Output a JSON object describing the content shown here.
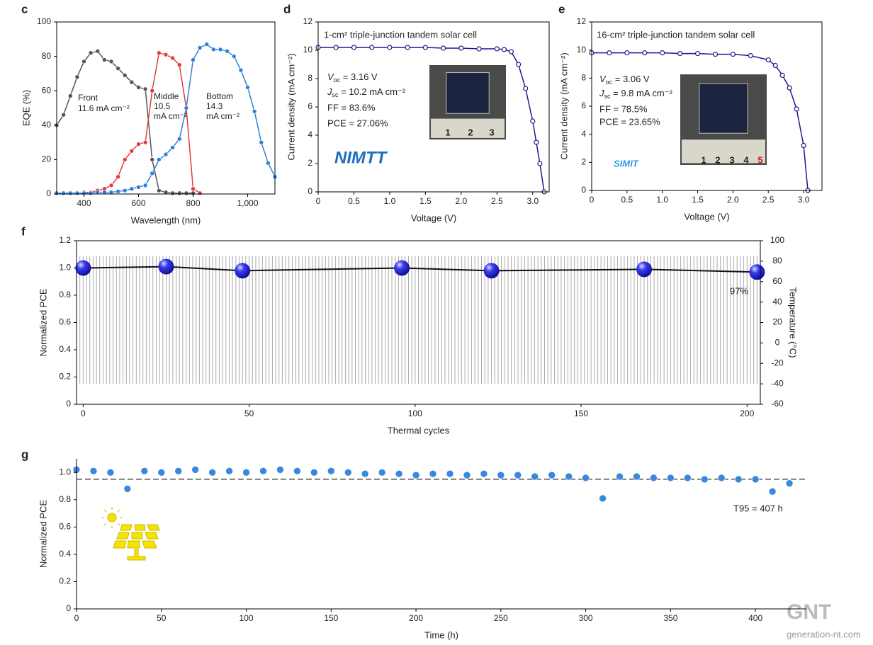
{
  "chart_data": [
    {
      "type": "line",
      "panel": "c",
      "xlabel": "Wavelength (nm)",
      "ylabel": "EQE (%)",
      "xlim": [
        300,
        1100
      ],
      "xticks": [
        400,
        600,
        800,
        {
          "value": 1000,
          "label": "1,000"
        }
      ],
      "ylim": [
        0,
        100
      ],
      "yticks": [
        0,
        20,
        40,
        60,
        80,
        100
      ],
      "notes": [
        "Front",
        "11.6 mA cm⁻²",
        "Middle",
        "10.5",
        "mA cm⁻²",
        "Bottom",
        "14.3",
        "mA cm⁻²"
      ],
      "x": [
        300,
        325,
        350,
        375,
        400,
        425,
        450,
        475,
        500,
        525,
        550,
        575,
        600,
        625,
        650,
        675,
        700,
        725,
        750,
        775,
        800,
        825,
        850,
        875,
        900,
        925,
        950,
        975,
        1000,
        1025,
        1050,
        1075,
        1100
      ],
      "series": [
        {
          "color": "#555555",
          "marker": "dot",
          "values": [
            40,
            46,
            57,
            68,
            77,
            82,
            83,
            78,
            77,
            73,
            69,
            65,
            62,
            61,
            20,
            2,
            1,
            0.5,
            0.5,
            0.5,
            0.5,
            null,
            null,
            null,
            null,
            null,
            null,
            null,
            null,
            null,
            null,
            null,
            null
          ]
        },
        {
          "color": "#e03c3c",
          "marker": "dot",
          "values": [
            null,
            null,
            null,
            null,
            1,
            1,
            2,
            3,
            5,
            10,
            20,
            25,
            29,
            30,
            60,
            82,
            81,
            79,
            75,
            50,
            3,
            0.5,
            null,
            null,
            null,
            null,
            null,
            null,
            null,
            null,
            null,
            null,
            null
          ]
        },
        {
          "color": "#2f7fd8",
          "marker": "dot",
          "values": [
            0.5,
            0.5,
            0.5,
            0.5,
            0.5,
            0.5,
            1,
            1,
            1,
            1.5,
            2,
            3,
            4,
            5,
            12,
            20,
            23,
            27,
            32,
            50,
            78,
            85,
            87,
            84,
            84,
            83,
            80,
            72,
            62,
            48,
            30,
            18,
            10
          ]
        }
      ]
    },
    {
      "type": "line",
      "panel": "d",
      "title": "1-cm² triple-junction tandem solar cell",
      "xlabel": "Voltage (V)",
      "ylabel": "Current density (mA cm⁻²)",
      "xlim": [
        0,
        3.23
      ],
      "xticks": [
        0,
        0.5,
        {
          "value": 1,
          "label": "1.0"
        },
        1.5,
        {
          "value": 2,
          "label": "2.0"
        },
        2.5,
        {
          "value": 3,
          "label": "3.0"
        }
      ],
      "ylim": [
        0,
        12
      ],
      "yticks": [
        0,
        2,
        4,
        6,
        8,
        10,
        12
      ],
      "notes": [
        {
          "main": "V",
          "sub": "oc",
          "rest": " = 3.16 V"
        },
        {
          "main": "J",
          "sub": "sc",
          "rest": " = 10.2 mA cm⁻²"
        },
        "FF = 83.6%",
        "PCE = 27.06%"
      ],
      "logo": "NIMTT",
      "inset_labels": [
        "1",
        "2",
        "3"
      ],
      "x": [
        0,
        0.25,
        0.5,
        0.75,
        1,
        1.25,
        1.5,
        1.75,
        2,
        2.25,
        2.5,
        2.6,
        2.7,
        2.8,
        2.9,
        3.0,
        3.05,
        3.1,
        3.16
      ],
      "series": [
        {
          "color": "#1a1a8c",
          "marker": "ring",
          "values": [
            10.2,
            10.2,
            10.2,
            10.2,
            10.2,
            10.2,
            10.2,
            10.15,
            10.15,
            10.1,
            10.1,
            10.05,
            9.9,
            9.0,
            7.3,
            5.0,
            3.5,
            2.0,
            0
          ]
        }
      ]
    },
    {
      "type": "line",
      "panel": "e",
      "title": "16-cm² triple-junction tandem solar cell",
      "xlabel": "Voltage (V)",
      "ylabel": "Current density (mA cm⁻²)",
      "xlim": [
        0,
        3.26
      ],
      "xticks": [
        0,
        0.5,
        {
          "value": 1,
          "label": "1.0"
        },
        1.5,
        {
          "value": 2,
          "label": "2.0"
        },
        2.5,
        {
          "value": 3,
          "label": "3.0"
        }
      ],
      "ylim": [
        0,
        12
      ],
      "yticks": [
        0,
        2,
        4,
        6,
        8,
        10,
        12
      ],
      "notes": [
        {
          "main": "V",
          "sub": "oc",
          "rest": " = 3.06 V"
        },
        {
          "main": "J",
          "sub": "sc",
          "rest": " = 9.8 mA cm⁻²"
        },
        "FF = 78.5%",
        "PCE = 23.65%"
      ],
      "logo": "SIMIT",
      "inset_labels": [
        "1",
        "2",
        "3",
        "4",
        "5"
      ],
      "x": [
        0,
        0.25,
        0.5,
        0.75,
        1,
        1.25,
        1.5,
        1.75,
        2,
        2.25,
        2.5,
        2.6,
        2.7,
        2.8,
        2.9,
        3.0,
        3.06
      ],
      "series": [
        {
          "color": "#1a1a8c",
          "marker": "ring",
          "values": [
            9.8,
            9.8,
            9.8,
            9.8,
            9.8,
            9.75,
            9.75,
            9.7,
            9.7,
            9.6,
            9.3,
            8.9,
            8.2,
            7.3,
            5.8,
            3.2,
            0
          ]
        }
      ]
    },
    {
      "type": "line",
      "panel": "f",
      "xlabel": "Thermal cycles",
      "ylabel": "Normalized PCE",
      "y2label": "Temperature (°C)",
      "xlim": [
        -2,
        204
      ],
      "xticks": [
        0,
        50,
        100,
        150,
        200
      ],
      "ylim": [
        0,
        1.2
      ],
      "yticks": [
        0,
        0.2,
        0.4,
        0.6,
        0.8,
        {
          "value": 1,
          "label": "1.0"
        },
        1.2
      ],
      "y2lim": [
        -60,
        100
      ],
      "y2ticks": [
        -60,
        -40,
        -20,
        0,
        20,
        40,
        60,
        80,
        100
      ],
      "temperature_range": [
        -40,
        85
      ],
      "temperature_color": "#aaaaaa",
      "notes": [
        "97%"
      ],
      "x": [
        0,
        25,
        48,
        96,
        123,
        169,
        203
      ],
      "series": [
        {
          "color": "#111111",
          "marker": "sphere",
          "values": [
            1.0,
            1.01,
            0.98,
            1.0,
            0.98,
            0.99,
            0.97
          ]
        }
      ]
    },
    {
      "type": "scatter",
      "panel": "g",
      "xlabel": "Time (h)",
      "ylabel": "Normalized PCE",
      "xlim": [
        0,
        430
      ],
      "xticks": [
        0,
        50,
        100,
        150,
        200,
        250,
        300,
        350,
        400
      ],
      "ylim": [
        0,
        1.1
      ],
      "yticks": [
        0,
        0.2,
        0.4,
        0.6,
        0.8,
        {
          "value": 1,
          "label": "1.0"
        }
      ],
      "reference": 0.95,
      "notes": [
        "T95 = 407 h"
      ],
      "x": [
        0,
        10,
        20,
        30,
        40,
        50,
        60,
        70,
        80,
        90,
        100,
        110,
        120,
        130,
        140,
        150,
        160,
        170,
        180,
        190,
        200,
        210,
        220,
        230,
        240,
        250,
        260,
        270,
        280,
        290,
        300,
        310,
        320,
        330,
        340,
        350,
        360,
        370,
        380,
        390,
        400,
        410,
        420
      ],
      "series": [
        {
          "color": "#3a87e0",
          "marker": "dot",
          "values": [
            1.02,
            1.01,
            1.0,
            0.88,
            1.01,
            1.0,
            1.01,
            1.02,
            1.0,
            1.01,
            1.0,
            1.01,
            1.02,
            1.01,
            1.0,
            1.01,
            1.0,
            0.99,
            1.0,
            0.99,
            0.98,
            0.99,
            0.99,
            0.98,
            0.99,
            0.98,
            0.98,
            0.97,
            0.98,
            0.97,
            0.96,
            0.81,
            0.97,
            0.97,
            0.96,
            0.96,
            0.96,
            0.95,
            0.96,
            0.95,
            0.95,
            0.86,
            0.92
          ]
        }
      ]
    }
  ],
  "watermark": {
    "logo": "GNT",
    "site": "generation-nt.com"
  }
}
